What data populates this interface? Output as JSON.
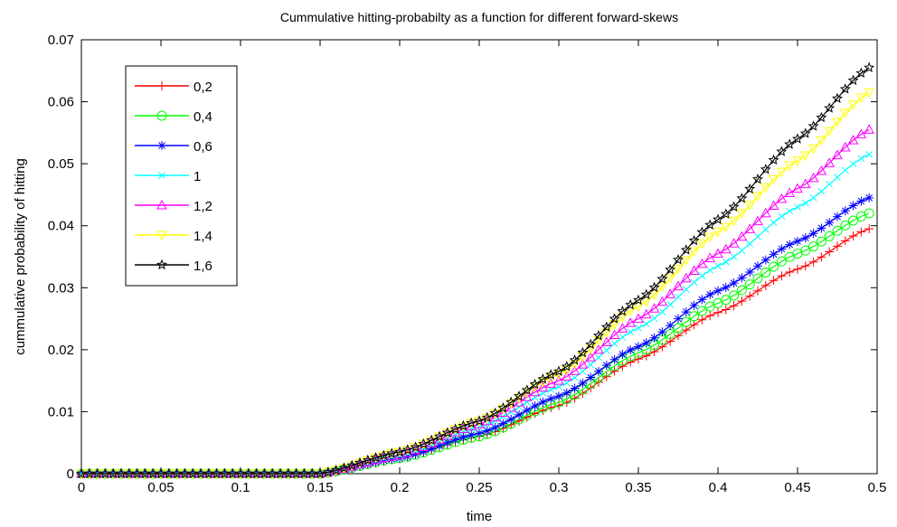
{
  "chart_data": {
    "type": "line",
    "title": "Cummulative hitting-probabilty as a function for different forward-skews",
    "xlabel": "time",
    "ylabel": "cummulative probability of hitting",
    "xlim": [
      0,
      0.5
    ],
    "ylim": [
      0,
      0.07
    ],
    "x_ticks": [
      "0",
      "0.05",
      "0.1",
      "0.15",
      "0.2",
      "0.25",
      "0.3",
      "0.35",
      "0.4",
      "0.45",
      "0.5"
    ],
    "y_ticks": [
      "0",
      "0.01",
      "0.02",
      "0.03",
      "0.04",
      "0.05",
      "0.06",
      "0.07"
    ],
    "grid": false,
    "legend_position": "top-left",
    "x": [
      0,
      0.15,
      0.2,
      0.25,
      0.3,
      0.35,
      0.4,
      0.45,
      0.495
    ],
    "series": [
      {
        "name": "0,2",
        "color": "#ff0000",
        "marker": "plus",
        "values": [
          0,
          0,
          0.0025,
          0.006,
          0.011,
          0.0185,
          0.026,
          0.033,
          0.0395
        ]
      },
      {
        "name": "0,4",
        "color": "#00ff00",
        "marker": "circle",
        "values": [
          0,
          0,
          0.0025,
          0.006,
          0.0115,
          0.0195,
          0.0275,
          0.0355,
          0.042
        ]
      },
      {
        "name": "0,6",
        "color": "#0000ff",
        "marker": "asterisk",
        "values": [
          0,
          0,
          0.0025,
          0.0065,
          0.0125,
          0.0205,
          0.0295,
          0.0375,
          0.0445
        ]
      },
      {
        "name": "1",
        "color": "#00ffff",
        "marker": "x",
        "values": [
          0,
          0,
          0.003,
          0.0075,
          0.014,
          0.0235,
          0.0335,
          0.043,
          0.0515
        ]
      },
      {
        "name": "1,2",
        "color": "#ff00ff",
        "marker": "triangle-up",
        "values": [
          0,
          0,
          0.003,
          0.008,
          0.015,
          0.025,
          0.0355,
          0.046,
          0.0555
        ]
      },
      {
        "name": "1,4",
        "color": "#ffff00",
        "marker": "triangle-down",
        "values": [
          0,
          0,
          0.0035,
          0.0085,
          0.016,
          0.027,
          0.039,
          0.0505,
          0.0615
        ]
      },
      {
        "name": "1,6",
        "color": "#000000",
        "marker": "star",
        "values": [
          0,
          0,
          0.0035,
          0.0085,
          0.0165,
          0.028,
          0.041,
          0.054,
          0.0655
        ]
      }
    ]
  }
}
